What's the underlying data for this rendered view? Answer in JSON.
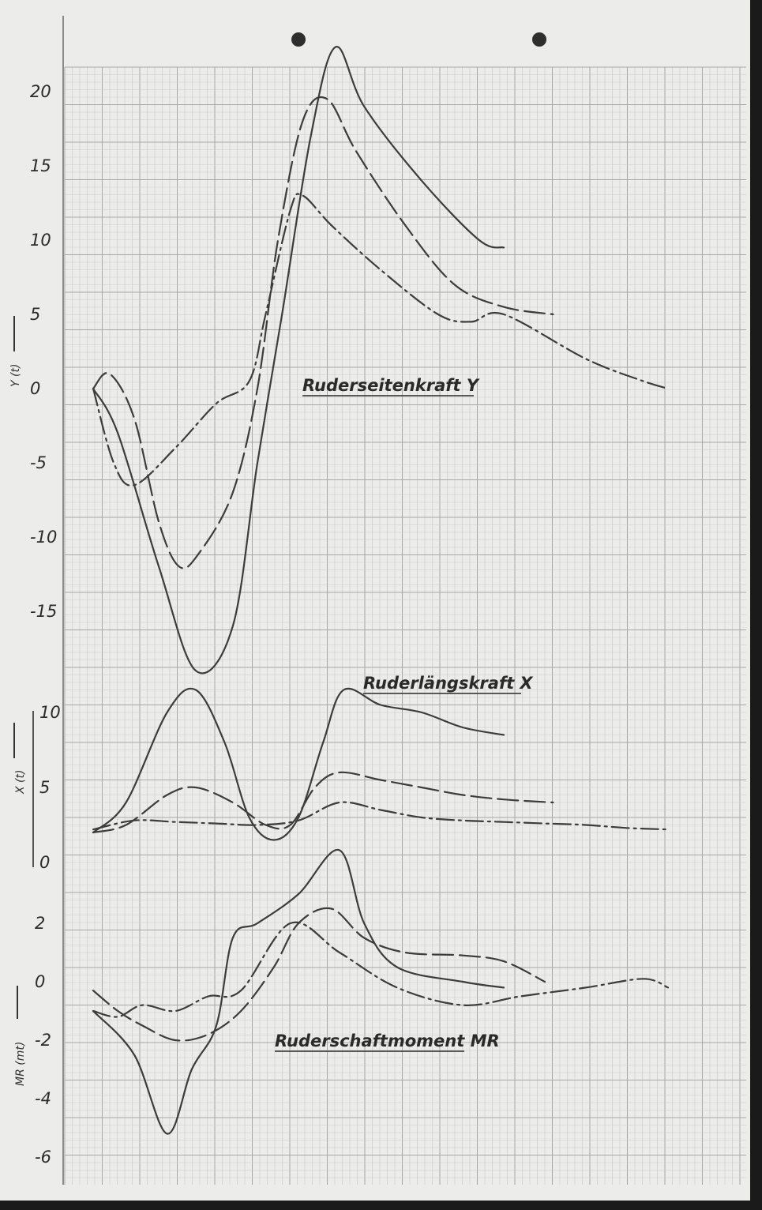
{
  "colors": {
    "paper": "#ececea",
    "grid_minor": "#c9cac6",
    "grid_major": "#a9aaa6",
    "ink": "#3c3c3c"
  },
  "chart_data": [
    {
      "type": "line",
      "title": "Ruderseitenkraft Y",
      "ylabel": "Y (t)",
      "ylim": [
        -19,
        23
      ],
      "yticks": [
        "20",
        "15",
        "10",
        "5",
        "0",
        "-5",
        "-10",
        "-15"
      ],
      "grid": true,
      "series": [
        {
          "style": "solid",
          "points": [
            [
              0,
              0
            ],
            [
              0.03,
              -3
            ],
            [
              0.08,
              -12
            ],
            [
              0.125,
              -19
            ],
            [
              0.17,
              -16
            ],
            [
              0.2,
              -5
            ],
            [
              0.23,
              5
            ],
            [
              0.265,
              17
            ],
            [
              0.295,
              23
            ],
            [
              0.33,
              19
            ],
            [
              0.4,
              14
            ],
            [
              0.47,
              10
            ],
            [
              0.5,
              9.5
            ]
          ]
        },
        {
          "style": "long-dash",
          "points": [
            [
              0,
              0
            ],
            [
              0.02,
              1
            ],
            [
              0.05,
              -2
            ],
            [
              0.08,
              -9
            ],
            [
              0.105,
              -12
            ],
            [
              0.13,
              -11
            ],
            [
              0.17,
              -7
            ],
            [
              0.2,
              0
            ],
            [
              0.225,
              10
            ],
            [
              0.255,
              18
            ],
            [
              0.285,
              19.5
            ],
            [
              0.32,
              16
            ],
            [
              0.38,
              11
            ],
            [
              0.44,
              7
            ],
            [
              0.5,
              5.5
            ],
            [
              0.56,
              5
            ]
          ]
        },
        {
          "style": "dash-dot",
          "points": [
            [
              0,
              0
            ],
            [
              0.025,
              -5
            ],
            [
              0.05,
              -6.5
            ],
            [
              0.1,
              -4
            ],
            [
              0.15,
              -1
            ],
            [
              0.19,
              0.5
            ],
            [
              0.21,
              5
            ],
            [
              0.24,
              12
            ],
            [
              0.255,
              13
            ],
            [
              0.29,
              11
            ],
            [
              0.35,
              8
            ],
            [
              0.42,
              5
            ],
            [
              0.46,
              4.5
            ],
            [
              0.5,
              5
            ],
            [
              0.6,
              2
            ],
            [
              0.67,
              0.5
            ],
            [
              0.7,
              0
            ]
          ]
        }
      ]
    },
    {
      "type": "line",
      "title": "Ruderlängskraft X",
      "ylabel": "X (t)",
      "ylim": [
        0,
        11
      ],
      "yticks": [
        "10",
        "5",
        "0"
      ],
      "grid": true,
      "series": [
        {
          "style": "solid",
          "points": [
            [
              0,
              2
            ],
            [
              0.04,
              4
            ],
            [
              0.09,
              10
            ],
            [
              0.125,
              11.5
            ],
            [
              0.16,
              8
            ],
            [
              0.19,
              3
            ],
            [
              0.22,
              1.5
            ],
            [
              0.25,
              3
            ],
            [
              0.28,
              8
            ],
            [
              0.305,
              11.5
            ],
            [
              0.35,
              10.5
            ],
            [
              0.4,
              10
            ],
            [
              0.45,
              9
            ],
            [
              0.5,
              8.5
            ]
          ]
        },
        {
          "style": "long-dash",
          "points": [
            [
              0,
              2
            ],
            [
              0.04,
              2.5
            ],
            [
              0.09,
              4.5
            ],
            [
              0.125,
              5
            ],
            [
              0.17,
              4
            ],
            [
              0.21,
              2.5
            ],
            [
              0.24,
              2.5
            ],
            [
              0.27,
              5
            ],
            [
              0.3,
              6
            ],
            [
              0.35,
              5.5
            ],
            [
              0.4,
              5
            ],
            [
              0.45,
              4.5
            ],
            [
              0.5,
              4.2
            ],
            [
              0.56,
              4
            ]
          ]
        },
        {
          "style": "dash-dot",
          "points": [
            [
              0,
              2.2
            ],
            [
              0.05,
              2.8
            ],
            [
              0.1,
              2.7
            ],
            [
              0.15,
              2.6
            ],
            [
              0.2,
              2.5
            ],
            [
              0.25,
              2.8
            ],
            [
              0.3,
              4
            ],
            [
              0.35,
              3.5
            ],
            [
              0.4,
              3
            ],
            [
              0.45,
              2.8
            ],
            [
              0.5,
              2.7
            ],
            [
              0.55,
              2.6
            ],
            [
              0.6,
              2.5
            ],
            [
              0.65,
              2.3
            ],
            [
              0.7,
              2.2
            ]
          ]
        }
      ]
    },
    {
      "type": "line",
      "title": "Ruderschaftmoment MR",
      "ylabel": "MR (mt)",
      "ylim": [
        -6.5,
        5
      ],
      "yticks": [
        "2",
        "0",
        "-2",
        "-4",
        "-6"
      ],
      "grid": true,
      "series": [
        {
          "style": "solid",
          "points": [
            [
              0,
              -1
            ],
            [
              0.05,
              -2.5
            ],
            [
              0.09,
              -5.2
            ],
            [
              0.12,
              -3
            ],
            [
              0.15,
              -1.5
            ],
            [
              0.17,
              1.5
            ],
            [
              0.2,
              2
            ],
            [
              0.25,
              3
            ],
            [
              0.3,
              4.5
            ],
            [
              0.33,
              2
            ],
            [
              0.37,
              0.5
            ],
            [
              0.45,
              0
            ],
            [
              0.5,
              -0.2
            ]
          ]
        },
        {
          "style": "long-dash",
          "points": [
            [
              0,
              -0.3
            ],
            [
              0.03,
              -1
            ],
            [
              0.06,
              -1.5
            ],
            [
              0.1,
              -2
            ],
            [
              0.14,
              -1.8
            ],
            [
              0.18,
              -1
            ],
            [
              0.22,
              0.5
            ],
            [
              0.25,
              2
            ],
            [
              0.29,
              2.5
            ],
            [
              0.33,
              1.5
            ],
            [
              0.38,
              1
            ],
            [
              0.45,
              0.9
            ],
            [
              0.5,
              0.7
            ],
            [
              0.55,
              0
            ]
          ]
        },
        {
          "style": "dash-dot",
          "points": [
            [
              0,
              -1
            ],
            [
              0.03,
              -1.2
            ],
            [
              0.06,
              -0.8
            ],
            [
              0.1,
              -1
            ],
            [
              0.14,
              -0.5
            ],
            [
              0.18,
              -0.3
            ],
            [
              0.24,
              2
            ],
            [
              0.3,
              1
            ],
            [
              0.37,
              -0.2
            ],
            [
              0.45,
              -0.8
            ],
            [
              0.52,
              -0.5
            ],
            [
              0.6,
              -0.2
            ],
            [
              0.67,
              0.1
            ],
            [
              0.7,
              -0.2
            ]
          ]
        }
      ]
    }
  ]
}
